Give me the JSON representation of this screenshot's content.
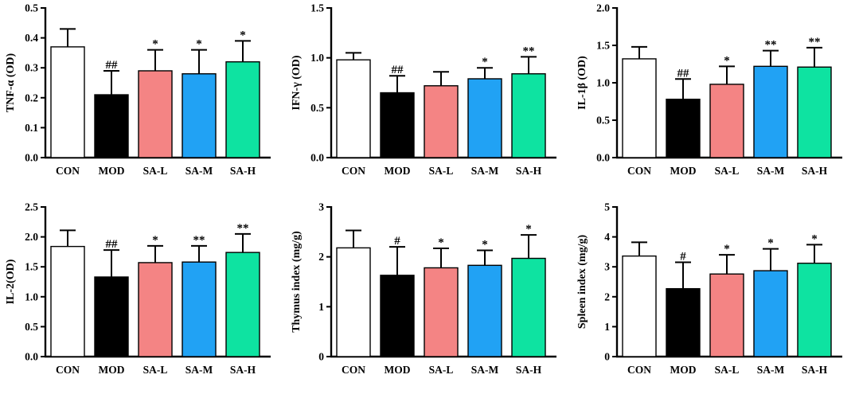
{
  "chart_data": [
    {
      "type": "bar",
      "title": "",
      "ylabel": "TNF-α (OD)",
      "categories": [
        "CON",
        "MOD",
        "SA-L",
        "SA-M",
        "SA-H"
      ],
      "values": [
        0.37,
        0.21,
        0.29,
        0.28,
        0.32
      ],
      "errors": [
        0.06,
        0.08,
        0.07,
        0.08,
        0.07
      ],
      "significance": [
        "",
        "##",
        "*",
        "*",
        "*"
      ],
      "ylim": [
        0,
        0.5
      ],
      "yticks": [
        "0.0",
        "0.1",
        "0.2",
        "0.3",
        "0.4",
        "0.5"
      ]
    },
    {
      "type": "bar",
      "title": "",
      "ylabel": "IFN-γ (OD)",
      "categories": [
        "CON",
        "MOD",
        "SA-L",
        "SA-M",
        "SA-H"
      ],
      "values": [
        0.98,
        0.65,
        0.72,
        0.79,
        0.84
      ],
      "errors": [
        0.07,
        0.17,
        0.14,
        0.11,
        0.17
      ],
      "significance": [
        "",
        "##",
        "",
        "*",
        "**"
      ],
      "ylim": [
        0,
        1.5
      ],
      "yticks": [
        "0.0",
        "0.5",
        "1.0",
        "1.5"
      ]
    },
    {
      "type": "bar",
      "title": "",
      "ylabel": "IL-1β (OD)",
      "categories": [
        "CON",
        "MOD",
        "SA-L",
        "SA-M",
        "SA-H"
      ],
      "values": [
        1.32,
        0.78,
        0.98,
        1.22,
        1.21
      ],
      "errors": [
        0.16,
        0.27,
        0.24,
        0.21,
        0.26
      ],
      "significance": [
        "",
        "##",
        "*",
        "**",
        "**"
      ],
      "ylim": [
        0,
        2.0
      ],
      "yticks": [
        "0.0",
        "0.5",
        "1.0",
        "1.5",
        "2.0"
      ]
    },
    {
      "type": "bar",
      "title": "",
      "ylabel": "IL-2(OD)",
      "categories": [
        "CON",
        "MOD",
        "SA-L",
        "SA-M",
        "SA-H"
      ],
      "values": [
        1.84,
        1.33,
        1.57,
        1.58,
        1.74
      ],
      "errors": [
        0.27,
        0.45,
        0.28,
        0.27,
        0.31
      ],
      "significance": [
        "",
        "##",
        "*",
        "**",
        "**"
      ],
      "ylim": [
        0,
        2.5
      ],
      "yticks": [
        "0.0",
        "0.5",
        "1.0",
        "1.5",
        "2.0",
        "2.5"
      ]
    },
    {
      "type": "bar",
      "title": "",
      "ylabel": "Thymus index (mg/g)",
      "categories": [
        "CON",
        "MOD",
        "SA-L",
        "SA-M",
        "SA-H"
      ],
      "values": [
        2.18,
        1.63,
        1.78,
        1.83,
        1.97
      ],
      "errors": [
        0.35,
        0.57,
        0.39,
        0.3,
        0.47
      ],
      "significance": [
        "",
        "#",
        "*",
        "*",
        "*"
      ],
      "ylim": [
        0,
        3
      ],
      "yticks": [
        "0",
        "1",
        "2",
        "3"
      ]
    },
    {
      "type": "bar",
      "title": "",
      "ylabel": "Spleen index (mg/g)",
      "categories": [
        "CON",
        "MOD",
        "SA-L",
        "SA-M",
        "SA-H"
      ],
      "values": [
        3.36,
        2.27,
        2.76,
        2.87,
        3.12
      ],
      "errors": [
        0.46,
        0.88,
        0.64,
        0.73,
        0.62
      ],
      "significance": [
        "",
        "#",
        "*",
        "*",
        "*"
      ],
      "ylim": [
        0,
        5
      ],
      "yticks": [
        "0",
        "1",
        "2",
        "3",
        "4",
        "5"
      ]
    }
  ],
  "colors": {
    "CON": "#ffffff",
    "MOD": "#000000",
    "SA-L": "#f48484",
    "SA-M": "#21a2f4",
    "SA-H": "#0ee3a1"
  }
}
